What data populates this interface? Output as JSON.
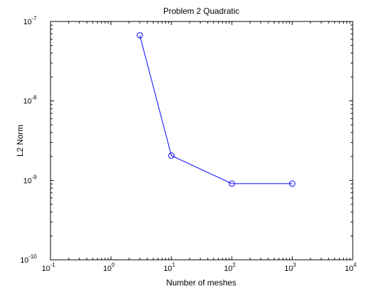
{
  "colors": {
    "background": "#ffffff",
    "axes": "#000000",
    "series": "#0000ff"
  },
  "chart_data": {
    "type": "line",
    "title": "Problem 2 Quadratic",
    "xlabel": "Number of meshes",
    "ylabel": "L2 Norm",
    "xscale": "log",
    "yscale": "log",
    "xlim": [
      0.1,
      10000
    ],
    "ylim": [
      1e-10,
      1e-07
    ],
    "grid": false,
    "legend": "none",
    "x_ticks": [
      {
        "value": 0.1,
        "base": "10",
        "exp": "-1"
      },
      {
        "value": 1,
        "base": "10",
        "exp": "0"
      },
      {
        "value": 10,
        "base": "10",
        "exp": "1"
      },
      {
        "value": 100,
        "base": "10",
        "exp": "2"
      },
      {
        "value": 1000,
        "base": "10",
        "exp": "3"
      },
      {
        "value": 10000,
        "base": "10",
        "exp": "4"
      }
    ],
    "y_ticks": [
      {
        "value": 1e-10,
        "base": "10",
        "exp": "-10"
      },
      {
        "value": 1e-09,
        "base": "10",
        "exp": "-9"
      },
      {
        "value": 1e-08,
        "base": "10",
        "exp": "-8"
      },
      {
        "value": 1e-07,
        "base": "10",
        "exp": "-7"
      }
    ],
    "series": [
      {
        "marker": "circle",
        "color": "#0000ff",
        "x": [
          3,
          10,
          100,
          1000
        ],
        "y": [
          6.7e-08,
          2.05e-09,
          9.1e-10,
          9.1e-10
        ]
      }
    ]
  }
}
